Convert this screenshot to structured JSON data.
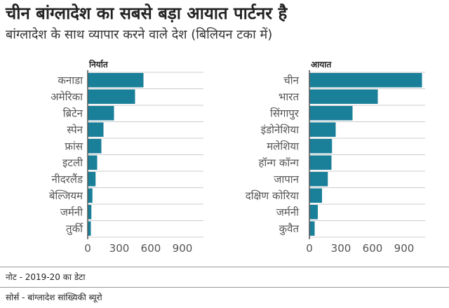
{
  "title": "चीन बांग्लादेश का सबसे बड़ा आयात पार्टनर है",
  "subtitle": "बांग्लादेश के साथ व्यापार करने वाले देश (बिलियन टका में)",
  "colors": {
    "bar": "#1a7f99",
    "grid": "#cccccc",
    "axis": "#555555"
  },
  "footer": {
    "note": "नोट - 2019-20 का डेटा",
    "source": "सोर्स - बांग्लादेश सांख्यिकी ब्यूरो"
  },
  "chart_data": [
    {
      "type": "bar",
      "orientation": "horizontal",
      "title": "निर्यात",
      "categories": [
        "कनाडा",
        "अमेरिका",
        "ब्रिटेन",
        "स्पेन",
        "फ्रांस",
        "इटली",
        "नीदरलैंड",
        "बेल्जियम",
        "जर्मनी",
        "तुर्की"
      ],
      "values": [
        530,
        450,
        250,
        150,
        130,
        90,
        75,
        45,
        35,
        30
      ],
      "xlim": [
        0,
        1100
      ],
      "xticks": [
        0,
        300,
        600,
        900
      ],
      "xtick_labels": [
        "0",
        "300",
        "600",
        "900"
      ],
      "grid": true
    },
    {
      "type": "bar",
      "orientation": "horizontal",
      "title": "आयात",
      "categories": [
        "चीन",
        "भारत",
        "सिंगापुर",
        "इंडोनेशिया",
        "मलेशिया",
        "हॉन्ग कॉन्ग",
        "जापान",
        "दक्षिण कोरिया",
        "जर्मनी",
        "कुवैत"
      ],
      "values": [
        1070,
        650,
        410,
        250,
        215,
        210,
        175,
        120,
        80,
        50
      ],
      "xlim": [
        0,
        1100
      ],
      "xticks": [
        0,
        300,
        600,
        900
      ],
      "xtick_labels": [
        "0",
        "300",
        "600",
        "900"
      ],
      "grid": true
    }
  ]
}
